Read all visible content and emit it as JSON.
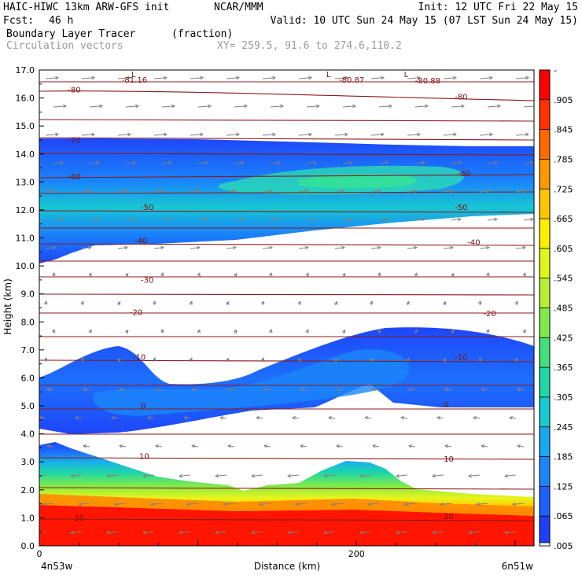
{
  "header": {
    "line1_left": "HAIC-HIWC 13km ARW-GFS init",
    "line1_mid": "NCAR/MMM",
    "line1_right": "Init: 12 UTC Fri 22 May 15",
    "line2_left": "Fcst:",
    "line2_fcst": "46 h",
    "line2_right": "Valid: 10 UTC Sun 24 May 15 (07 LST Sun 24 May 15)",
    "line3_left": "Boundary Layer Tracer",
    "line3_unit": "(fraction)",
    "line4_left": "Circulation vectors",
    "line4_right": "XY= 259.5, 91.6 to 274.6,110.2"
  },
  "chart_data": {
    "type": "heatmap",
    "xlabel": "Distance (km)",
    "ylabel": "Height (km)",
    "xlim": [
      0,
      312
    ],
    "ylim": [
      0,
      17
    ],
    "x_ticks": [
      {
        "value": 0,
        "label": "0"
      },
      {
        "value": 200,
        "label": "200"
      }
    ],
    "x_endpoints": {
      "left": "4n53w",
      "right": "6n51w"
    },
    "y_ticks": [
      "0.0",
      "1.0",
      "2.0",
      "3.0",
      "4.0",
      "5.0",
      "6.0",
      "7.0",
      "8.0",
      "9.0",
      "10.0",
      "11.0",
      "12.0",
      "13.0",
      "14.0",
      "15.0",
      "16.0",
      "17.0"
    ],
    "colorbar": {
      "labels": [
        "-",
        ".905",
        ".845",
        ".785",
        ".725",
        ".665",
        ".605",
        ".545",
        ".485",
        ".425",
        ".365",
        ".305",
        ".245",
        ".185",
        ".125",
        ".065",
        ".005"
      ],
      "colors": [
        "#fe0000",
        "#ff3300",
        "#ff6a00",
        "#ff9900",
        "#ffc400",
        "#ffee00",
        "#e0f51a",
        "#b4f032",
        "#7fea4b",
        "#42e07a",
        "#20d8a4",
        "#18c8d2",
        "#18a8ee",
        "#1a86fa",
        "#1e60fc",
        "#1e40f8"
      ]
    },
    "contour_labels": [
      {
        "text": "-81.16",
        "x": 52,
        "y": 16.55
      },
      {
        "text": "-80.87",
        "x": 189,
        "y": 16.55
      },
      {
        "text": "-80.88",
        "x": 237,
        "y": 16.52
      },
      {
        "text": "L",
        "x": 58,
        "y": 16.75
      },
      {
        "text": "L",
        "x": 181,
        "y": 16.75
      },
      {
        "text": "L",
        "x": 230,
        "y": 16.75
      },
      {
        "text": "-80",
        "x": 18,
        "y": 16.2
      },
      {
        "text": "-80",
        "x": 262,
        "y": 15.95
      },
      {
        "text": "-70",
        "x": 18,
        "y": 14.4
      },
      {
        "text": "-60",
        "x": 18,
        "y": 13.1
      },
      {
        "text": "-60",
        "x": 264,
        "y": 13.2
      },
      {
        "text": "-50",
        "x": 64,
        "y": 12.0
      },
      {
        "text": "-50",
        "x": 262,
        "y": 12.0
      },
      {
        "text": "-40",
        "x": 60,
        "y": 10.8
      },
      {
        "text": "-40",
        "x": 270,
        "y": 10.75
      },
      {
        "text": "-30",
        "x": 64,
        "y": 9.4
      },
      {
        "text": "-20",
        "x": 57,
        "y": 8.25
      },
      {
        "text": "-20",
        "x": 280,
        "y": 8.2
      },
      {
        "text": "-10",
        "x": 59,
        "y": 6.65
      },
      {
        "text": "-10",
        "x": 262,
        "y": 6.65
      },
      {
        "text": "0",
        "x": 64,
        "y": 4.9
      },
      {
        "text": "0",
        "x": 255,
        "y": 4.95
      },
      {
        "text": "10",
        "x": 63,
        "y": 3.1
      },
      {
        "text": "10",
        "x": 255,
        "y": 3.0
      },
      {
        "text": "20",
        "x": 22,
        "y": 0.9
      },
      {
        "text": "20",
        "x": 255,
        "y": 0.95
      }
    ]
  }
}
